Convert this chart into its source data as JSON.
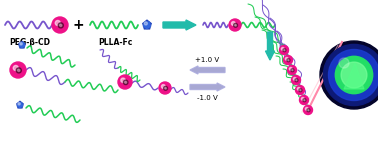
{
  "bg_color": "#ffffff",
  "label_peg": "PEG-β-CD",
  "label_plla": "PLLA-Fc",
  "label_plus": "+1.0 V",
  "label_minus": "-1.0 V",
  "peg_wavy_color": "#7755cc",
  "plla_wavy_color": "#22cc55",
  "pink_sphere_color": "#ee1188",
  "blue_shape_color": "#2244bb",
  "arrow_teal": "#22bbaa",
  "arrow_violet": "#9999cc",
  "surface_pink": "#ffaacc",
  "micelle_dark_blue": "#050530",
  "micelle_mid_blue": "#1122aa",
  "micelle_bright_blue": "#2255cc",
  "micelle_green": "#22dd66",
  "micelle_light_green": "#88ffbb"
}
